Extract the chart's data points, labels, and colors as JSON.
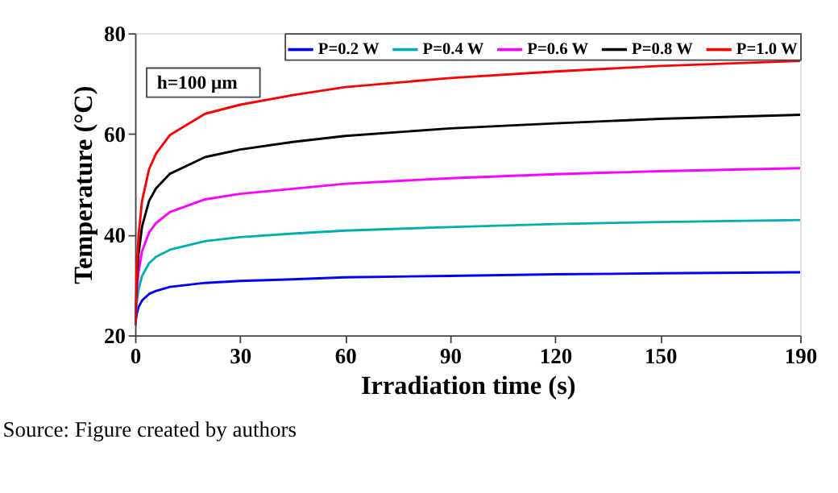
{
  "chart_data": {
    "type": "line",
    "xlabel": "Irradiation time (s)",
    "ylabel": "Temperature (°C)",
    "x": [
      0,
      0.5,
      1,
      2,
      4,
      6,
      10,
      20,
      30,
      45,
      60,
      90,
      120,
      150,
      190
    ],
    "xlim": [
      0,
      190
    ],
    "xticks": [
      0,
      30,
      60,
      90,
      120,
      150,
      190
    ],
    "ylim": [
      20,
      80
    ],
    "yticks": [
      20,
      40,
      60,
      80
    ],
    "grid": false,
    "legend": "top right",
    "marker": "none",
    "line_style": "solid",
    "series": [
      {
        "name": "P=0.2 W",
        "color": "#0000ff",
        "values": [
          22,
          24.3,
          25.6,
          26.9,
          28.2,
          28.8,
          29.6,
          30.4,
          30.8,
          31.1,
          31.5,
          31.8,
          32.1,
          32.3,
          32.5
        ]
      },
      {
        "name": "P=0.4 W",
        "color": "#00b0b0",
        "values": [
          22,
          26.6,
          29.1,
          31.8,
          34.3,
          35.6,
          37.0,
          38.7,
          39.5,
          40.2,
          40.8,
          41.5,
          42.1,
          42.5,
          42.9
        ]
      },
      {
        "name": "P=0.6 W",
        "color": "#ff00ff",
        "values": [
          22,
          28.9,
          32.6,
          36.7,
          40.4,
          42.3,
          44.5,
          47.0,
          48.1,
          49.1,
          50.1,
          51.2,
          52.0,
          52.6,
          53.2
        ]
      },
      {
        "name": "P=0.8 W",
        "color": "#000000",
        "values": [
          22,
          31.2,
          36.2,
          41.6,
          46.7,
          49.2,
          52.1,
          55.4,
          56.9,
          58.4,
          59.6,
          61.1,
          62.1,
          63.0,
          63.8
        ]
      },
      {
        "name": "P=1.0 W",
        "color": "#ff0000",
        "values": [
          22,
          33.6,
          39.9,
          46.7,
          53.0,
          56.1,
          59.8,
          64.0,
          65.8,
          67.7,
          69.3,
          71.1,
          72.4,
          73.5,
          74.5
        ]
      }
    ],
    "annotations": [
      "h=100 μm",
      "Source: Figure created by authors"
    ]
  }
}
